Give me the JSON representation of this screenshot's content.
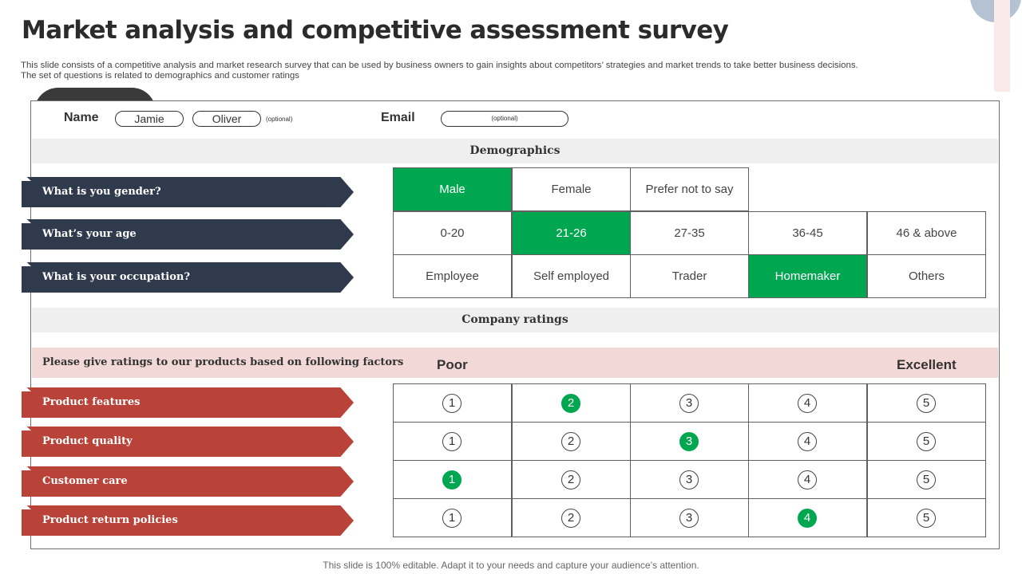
{
  "title": "Market analysis and competitive assessment survey",
  "subtitle_line1": "This slide consists of a competitive analysis and market research survey that can be used by business owners to gain insights about competitors’ strategies and market trends to take better business decisions.",
  "subtitle_line2": "The set of questions is related to demographics and customer ratings",
  "form": {
    "name_label": "Name",
    "first_name": "Jamie",
    "last_name": "Oliver",
    "name_optional": "(optional)",
    "email_label": "Email",
    "email_placeholder": "(optional)"
  },
  "demographics": {
    "heading": "Demographics",
    "questions": [
      {
        "label": "What is you gender?",
        "options": [
          "Male",
          "Female",
          "Prefer not to say"
        ],
        "selected": 0
      },
      {
        "label": "What’s your age",
        "options": [
          "0-20",
          "21-26",
          "27-35",
          "36-45",
          "46 & above"
        ],
        "selected": 1
      },
      {
        "label": "What is your occupation?",
        "options": [
          "Employee",
          "Self employed",
          "Trader",
          "Homemaker",
          "Others"
        ],
        "selected": 3
      }
    ]
  },
  "company_ratings": {
    "heading": "Company ratings",
    "prompt": "Please give ratings to our products based on following factors",
    "scale_low": "Poor",
    "scale_high": "Excellent",
    "scale": [
      "1",
      "2",
      "3",
      "4",
      "5"
    ],
    "factors": [
      {
        "label": "Product features",
        "rating": 2
      },
      {
        "label": "Product quality",
        "rating": 3
      },
      {
        "label": "Customer care",
        "rating": 1
      },
      {
        "label": "Product return policies",
        "rating": 4
      }
    ]
  },
  "colors": {
    "selected": "#00a650",
    "dark_arrow": "#2f3a4c",
    "red_arrow": "#b94338",
    "ratings_band": "#f2d9d7"
  },
  "footer": "This slide is 100% editable. Adapt it to your needs and capture your audience’s attention."
}
